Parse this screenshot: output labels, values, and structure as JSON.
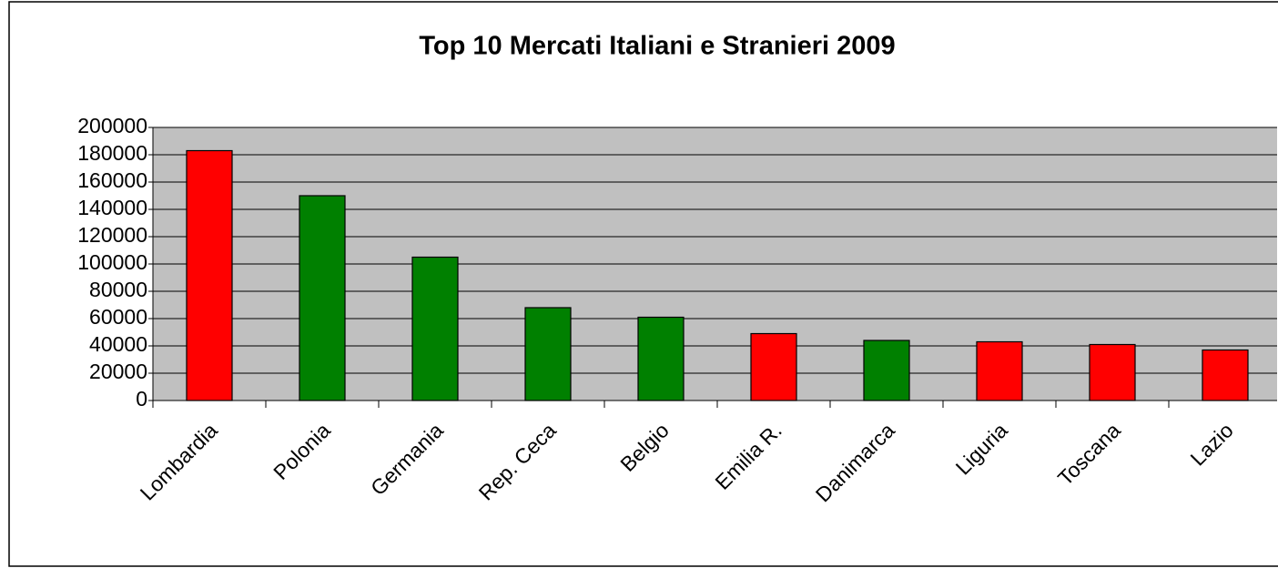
{
  "chart_data": {
    "type": "bar",
    "title": "Top 10 Mercati Italiani e Stranieri 2009",
    "categories": [
      "Lombardia",
      "Polonia",
      "Germania",
      "Rep. Ceca",
      "Belgio",
      "Emilia R.",
      "Danimarca",
      "Liguria",
      "Toscana",
      "Lazio"
    ],
    "values": [
      183000,
      150000,
      105000,
      68000,
      61000,
      49000,
      44000,
      43000,
      41000,
      37000
    ],
    "colors": [
      "#ff0000",
      "#008000",
      "#008000",
      "#008000",
      "#008000",
      "#ff0000",
      "#008000",
      "#ff0000",
      "#ff0000",
      "#ff0000"
    ],
    "ylim": [
      0,
      200000
    ],
    "yticks": [
      0,
      20000,
      40000,
      60000,
      80000,
      100000,
      120000,
      140000,
      160000,
      180000,
      200000
    ],
    "grid": true
  }
}
